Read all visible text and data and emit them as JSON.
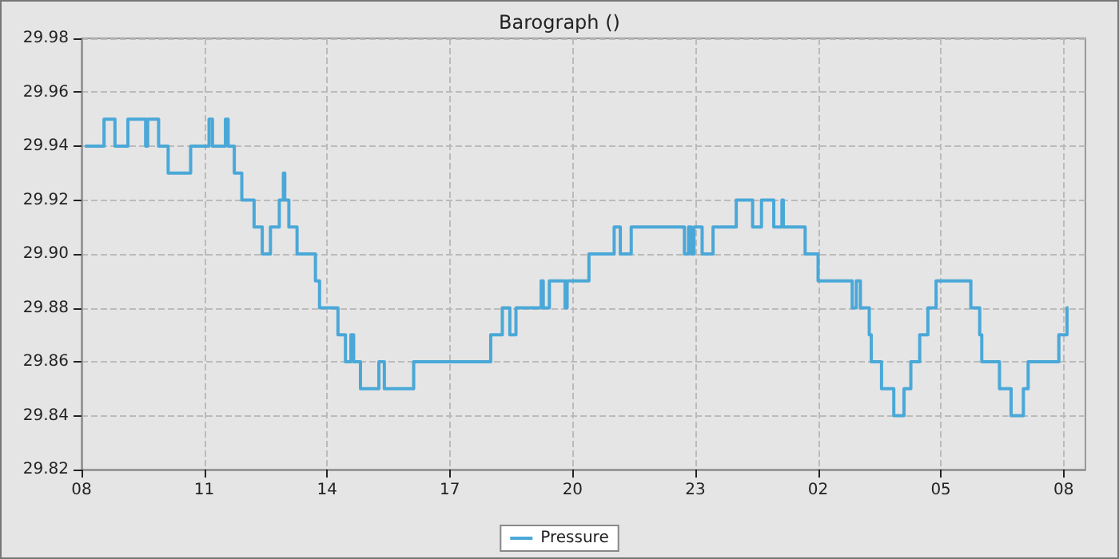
{
  "chart_data": {
    "type": "step",
    "title": "Barograph ()",
    "legend": "bottom",
    "grid": true,
    "line_style": "solid",
    "marker": "none",
    "xlim": [
      "--01-01T08:00",
      "--01-02T08:32"
    ],
    "ylim": [
      29.82,
      29.98
    ],
    "xticks": [
      {
        "value": "--01-01T08:00",
        "label": "08"
      },
      {
        "value": "--01-01T11:00",
        "label": "11"
      },
      {
        "value": "--01-01T14:00",
        "label": "14"
      },
      {
        "value": "--01-01T17:00",
        "label": "17"
      },
      {
        "value": "--01-01T20:00",
        "label": "20"
      },
      {
        "value": "--01-01T23:00",
        "label": "23"
      },
      {
        "value": "--01-02T02:00",
        "label": "02"
      },
      {
        "value": "--01-02T05:00",
        "label": "05"
      },
      {
        "value": "--01-02T08:00",
        "label": "08"
      }
    ],
    "yticks": [
      {
        "value": 29.82,
        "label": "29.82"
      },
      {
        "value": 29.84,
        "label": "29.84"
      },
      {
        "value": 29.86,
        "label": "29.86"
      },
      {
        "value": 29.88,
        "label": "29.88"
      },
      {
        "value": 29.9,
        "label": "29.90"
      },
      {
        "value": 29.92,
        "label": "29.92"
      },
      {
        "value": 29.94,
        "label": "29.94"
      },
      {
        "value": 29.96,
        "label": "29.96"
      },
      {
        "value": 29.98,
        "label": "29.98"
      }
    ],
    "series": [
      {
        "name": "Pressure",
        "color": "#4aa8d8",
        "x": [
          "--01-01T08:05",
          "--01-01T08:33",
          "--01-01T08:49",
          "--01-01T09:08",
          "--01-01T09:34",
          "--01-01T09:37",
          "--01-01T09:53",
          "--01-01T10:07",
          "--01-01T10:40",
          "--01-01T11:07",
          "--01-01T11:12",
          "--01-01T11:31",
          "--01-01T11:35",
          "--01-01T11:44",
          "--01-01T11:55",
          "--01-01T12:13",
          "--01-01T12:25",
          "--01-01T12:37",
          "--01-01T12:50",
          "--01-01T12:56",
          "--01-01T12:58",
          "--01-01T13:04",
          "--01-01T13:16",
          "--01-01T13:43",
          "--01-01T13:49",
          "--01-01T14:16",
          "--01-01T14:27",
          "--01-01T14:35",
          "--01-01T14:39",
          "--01-01T14:49",
          "--01-01T15:16",
          "--01-01T15:24",
          "--01-01T16:07",
          "--01-01T18:00",
          "--01-01T18:17",
          "--01-01T18:28",
          "--01-01T18:37",
          "--01-01T19:14",
          "--01-01T19:17",
          "--01-01T19:26",
          "--01-01T19:49",
          "--01-01T19:52",
          "--01-01T20:24",
          "--01-01T21:01",
          "--01-01T21:10",
          "--01-01T21:26",
          "--01-01T22:44",
          "--01-01T22:50",
          "--01-01T22:54",
          "--01-01T22:58",
          "--01-01T23:10",
          "--01-01T23:26",
          "--01-02T00:00",
          "--01-02T00:24",
          "--01-02T00:37",
          "--01-02T00:55",
          "--01-02T01:07",
          "--01-02T01:09",
          "--01-02T01:41",
          "--01-02T02:00",
          "--01-02T02:50",
          "--01-02T02:56",
          "--01-02T03:02",
          "--01-02T03:15",
          "--01-02T03:18",
          "--01-02T03:33",
          "--01-02T03:51",
          "--01-02T04:06",
          "--01-02T04:16",
          "--01-02T04:29",
          "--01-02T04:41",
          "--01-02T04:53",
          "--01-02T05:44",
          "--01-02T05:57",
          "--01-02T06:00",
          "--01-02T06:26",
          "--01-02T06:43",
          "--01-02T07:01",
          "--01-02T07:08",
          "--01-02T07:53",
          "--01-02T08:05",
          "--01-02T08:07"
        ],
        "values": [
          29.94,
          29.95,
          29.94,
          29.95,
          29.94,
          29.95,
          29.94,
          29.93,
          29.94,
          29.95,
          29.94,
          29.95,
          29.94,
          29.93,
          29.92,
          29.91,
          29.9,
          29.91,
          29.92,
          29.93,
          29.92,
          29.91,
          29.9,
          29.89,
          29.88,
          29.87,
          29.86,
          29.87,
          29.86,
          29.85,
          29.86,
          29.85,
          29.86,
          29.87,
          29.88,
          29.87,
          29.88,
          29.89,
          29.88,
          29.89,
          29.88,
          29.89,
          29.9,
          29.91,
          29.9,
          29.91,
          29.9,
          29.91,
          29.9,
          29.91,
          29.9,
          29.91,
          29.92,
          29.91,
          29.92,
          29.91,
          29.92,
          29.91,
          29.9,
          29.89,
          29.88,
          29.89,
          29.88,
          29.87,
          29.86,
          29.85,
          29.84,
          29.85,
          29.86,
          29.87,
          29.88,
          29.89,
          29.88,
          29.87,
          29.86,
          29.85,
          29.84,
          29.85,
          29.86,
          29.87,
          29.88,
          29.88
        ]
      }
    ]
  }
}
